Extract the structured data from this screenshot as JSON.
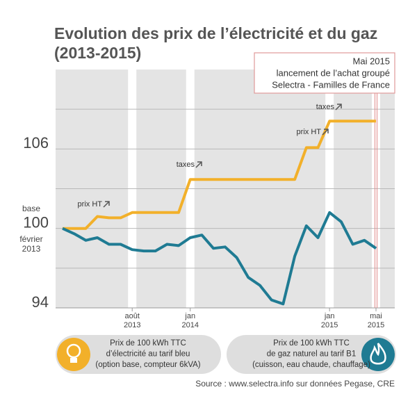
{
  "chart_data": {
    "type": "line",
    "title_lines": [
      "Evolution des prix de l’électricité et du gaz",
      "(2013-2015)"
    ],
    "categories": [
      null,
      null,
      null,
      null,
      null,
      null,
      "août 2013",
      null,
      null,
      null,
      null,
      "jan 2014",
      null,
      null,
      null,
      null,
      null,
      null,
      null,
      null,
      null,
      null,
      null,
      "jan 2015",
      null,
      null,
      null,
      "mai 2015"
    ],
    "series": [
      {
        "name_lines": [
          "Prix de 100 kWh TTC",
          "d’électricité au tarif bleu",
          "(option base, compteur 6kVA)"
        ],
        "color": "#f2b02a",
        "values": [
          100,
          100,
          100,
          100.9,
          100.8,
          100.8,
          101.2,
          101.2,
          101.2,
          101.2,
          101.2,
          103.7,
          103.7,
          103.7,
          103.7,
          103.7,
          103.7,
          103.7,
          103.7,
          103.7,
          103.7,
          106.1,
          106.1,
          108.1,
          108.1,
          108.1,
          108.1,
          108.1
        ]
      },
      {
        "name_lines": [
          "Prix de 100 kWh TTC",
          "de gaz naturel au tarif B1",
          "(cuisson, eau chaude, chauffage)"
        ],
        "color": "#1f7b93",
        "values": [
          100,
          99.6,
          99.1,
          99.3,
          98.8,
          98.8,
          98.4,
          98.3,
          98.3,
          98.8,
          98.7,
          99.3,
          99.5,
          98.5,
          98.6,
          97.8,
          96.3,
          95.7,
          94.6,
          94.3,
          97.9,
          100.2,
          99.3,
          101.2,
          100.5,
          98.8,
          99.1,
          98.5
        ]
      }
    ],
    "ylim": [
      94,
      112
    ],
    "yticks": [
      94,
      100,
      106
    ],
    "minor_grid_yticks": [
      97,
      103,
      109
    ],
    "grid": true,
    "y_base_label": [
      "base",
      "février",
      "2013"
    ],
    "annotations": [
      "prix HT",
      "taxes",
      "prix HT",
      "taxes"
    ],
    "callout_lines": [
      "Mai 2015",
      "lancement de l’achat groupé",
      "Selectra - Familles de France"
    ],
    "source": "Source : www.selectra.info sur données Pegase, CRE"
  }
}
